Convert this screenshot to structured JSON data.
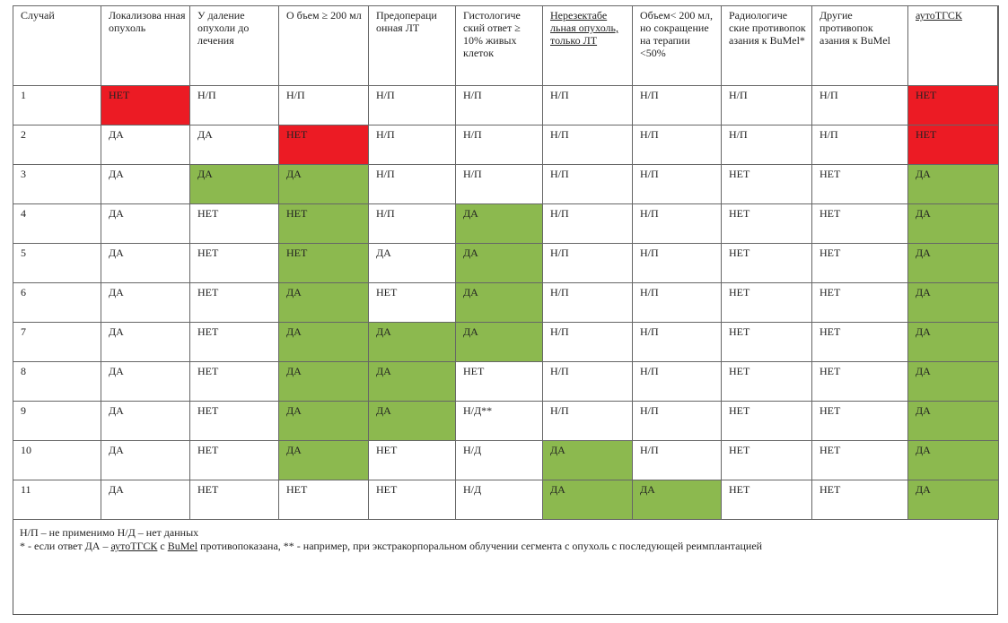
{
  "colors": {
    "no_highlight": "#ec1b24",
    "yes_highlight": "#8cb94f",
    "grid": "#666666"
  },
  "table": {
    "headers": [
      "Случай",
      "Локализова нная опухоль",
      "У даление опухоли до лечения",
      "О бъем ≥ 200 мл",
      "Предопераци онная ЛТ",
      "Гистологиче ский ответ ≥ 10% живых клеток",
      "Нерезектабе льная опухоль, только ЛТ",
      "Объем< 200 мл, но сокращение на терапии <50%",
      "Радиологиче ские противопок азания к BuMel*",
      "Другие противопок азания к BuMel",
      "аутоТГСК"
    ],
    "rows": [
      [
        "1",
        "НЕТ",
        "Н/П",
        "Н/П",
        "Н/П",
        "Н/П",
        "Н/П",
        "Н/П",
        "Н/П",
        "Н/П",
        "НЕТ"
      ],
      [
        "2",
        "ДА",
        "ДА",
        "НЕТ",
        "Н/П",
        "Н/П",
        "Н/П",
        "Н/П",
        "Н/П",
        "Н/П",
        "НЕТ"
      ],
      [
        "3",
        "ДА",
        "ДА",
        "ДА",
        "Н/П",
        "Н/П",
        "Н/П",
        "Н/П",
        "НЕТ",
        "НЕТ",
        "ДА"
      ],
      [
        "4",
        "ДА",
        "НЕТ",
        "НЕТ",
        "Н/П",
        "ДА",
        "Н/П",
        "Н/П",
        "НЕТ",
        "НЕТ",
        "ДА"
      ],
      [
        "5",
        "ДА",
        "НЕТ",
        "НЕТ",
        "ДА",
        "ДА",
        "Н/П",
        "Н/П",
        "НЕТ",
        "НЕТ",
        "ДА"
      ],
      [
        "6",
        "ДА",
        "НЕТ",
        "ДА",
        "НЕТ",
        "ДА",
        "Н/П",
        "Н/П",
        "НЕТ",
        "НЕТ",
        "ДА"
      ],
      [
        "7",
        "ДА",
        "НЕТ",
        "ДА",
        "ДА",
        "ДА",
        "Н/П",
        "Н/П",
        "НЕТ",
        "НЕТ",
        "ДА"
      ],
      [
        "8",
        "ДА",
        "НЕТ",
        "ДА",
        "ДА",
        "НЕТ",
        "Н/П",
        "Н/П",
        "НЕТ",
        "НЕТ",
        "ДА"
      ],
      [
        "9",
        "ДА",
        "НЕТ",
        "ДА",
        "ДА",
        "Н/Д**",
        "Н/П",
        "Н/П",
        "НЕТ",
        "НЕТ",
        "ДА"
      ],
      [
        "10",
        "ДА",
        "НЕТ",
        "ДА",
        "НЕТ",
        "Н/Д",
        "ДА",
        "Н/П",
        "НЕТ",
        "НЕТ",
        "ДА"
      ],
      [
        "11",
        "ДА",
        "НЕТ",
        "НЕТ",
        "НЕТ",
        "Н/Д",
        "ДА",
        "ДА",
        "НЕТ",
        "НЕТ",
        "ДА"
      ]
    ],
    "highlights": [
      [
        "",
        "red",
        "",
        "",
        "",
        "",
        "",
        "",
        "",
        "",
        "red"
      ],
      [
        "",
        "",
        "",
        "red",
        "",
        "",
        "",
        "",
        "",
        "",
        "red"
      ],
      [
        "",
        "",
        "green",
        "green",
        "",
        "",
        "",
        "",
        "",
        "",
        "green"
      ],
      [
        "",
        "",
        "",
        "green",
        "",
        "green",
        "",
        "",
        "",
        "",
        "green"
      ],
      [
        "",
        "",
        "",
        "green",
        "",
        "green",
        "",
        "",
        "",
        "",
        "green"
      ],
      [
        "",
        "",
        "",
        "green",
        "",
        "green",
        "",
        "",
        "",
        "",
        "green"
      ],
      [
        "",
        "",
        "",
        "green",
        "green",
        "green",
        "",
        "",
        "",
        "",
        "green"
      ],
      [
        "",
        "",
        "",
        "green",
        "green",
        "",
        "",
        "",
        "",
        "",
        "green"
      ],
      [
        "",
        "",
        "",
        "green",
        "green",
        "",
        "",
        "",
        "",
        "",
        "green"
      ],
      [
        "",
        "",
        "",
        "green",
        "",
        "",
        "green",
        "",
        "",
        "",
        "green"
      ],
      [
        "",
        "",
        "",
        "",
        "",
        "",
        "green",
        "green",
        "",
        "",
        "green"
      ]
    ]
  },
  "notes": {
    "line1": "Н/П – не применимо Н/Д – нет данных",
    "line2_a": "* - если ответ ДА – ",
    "line2_link1": "аутоТГСК",
    "line2_b": " с ",
    "line2_link2": "BuMel",
    "line2_c": " противопоказана,  ** - например, при экстракорпоральном облучении сегмента с опухоль с последующей реимплантацией"
  }
}
